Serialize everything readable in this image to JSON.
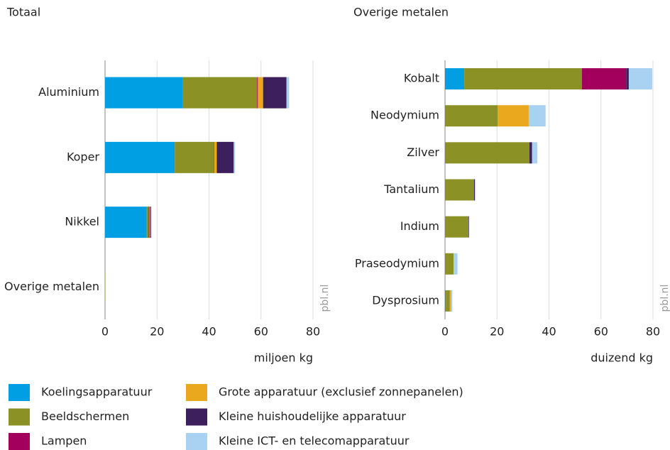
{
  "chart_data": [
    {
      "type": "bar",
      "orientation": "horizontal",
      "stacked": true,
      "title": "Totaal",
      "xlabel": "miljoen kg",
      "watermark": "pbl.nl",
      "categories": [
        "Aluminium",
        "Koper",
        "Nikkel",
        "Overige metalen"
      ],
      "xlim": [
        0,
        80
      ],
      "xticks": [
        0,
        20,
        40,
        60,
        80
      ],
      "grid": true,
      "series": [
        {
          "name": "Koelingsapparatuur",
          "color": "#009fe3",
          "values": [
            30,
            26.8,
            16,
            0
          ]
        },
        {
          "name": "Beeldschermen",
          "color": "#8b9125",
          "values": [
            28.5,
            15,
            0.8,
            0.1
          ]
        },
        {
          "name": "Lampen",
          "color": "#a3005e",
          "values": [
            0.3,
            0.2,
            0.3,
            0
          ]
        },
        {
          "name": "Grote apparatuur (exclusief zonnepanelen)",
          "color": "#e9a81d",
          "values": [
            2,
            1,
            0.3,
            0
          ]
        },
        {
          "name": "Kleine huishoudelijke apparatuur",
          "color": "#3c1f5c",
          "values": [
            9,
            6.5,
            0.3,
            0
          ]
        },
        {
          "name": "Kleine ICT- en telecomapparatuur",
          "color": "#a9d2f2",
          "values": [
            1,
            0.5,
            0,
            0
          ]
        }
      ]
    },
    {
      "type": "bar",
      "orientation": "horizontal",
      "stacked": true,
      "title": "Overige metalen",
      "xlabel": "duizend kg",
      "watermark": "pbl.nl",
      "categories": [
        "Kobalt",
        "Neodymium",
        "Zilver",
        "Tantalium",
        "Indium",
        "Praseodymium",
        "Dysprosium"
      ],
      "xlim": [
        0,
        80
      ],
      "xticks": [
        0,
        20,
        40,
        60,
        80
      ],
      "grid": true,
      "series": [
        {
          "name": "Koelingsapparatuur",
          "color": "#009fe3",
          "values": [
            7.4,
            0,
            0,
            0,
            0,
            0,
            0.3
          ]
        },
        {
          "name": "Beeldschermen",
          "color": "#8b9125",
          "values": [
            45.3,
            20.2,
            32.5,
            11.2,
            9,
            3.3,
            1.5
          ]
        },
        {
          "name": "Lampen",
          "color": "#a3005e",
          "values": [
            17,
            0,
            0,
            0,
            0,
            0,
            0
          ]
        },
        {
          "name": "Grote apparatuur (exclusief zonnepanelen)",
          "color": "#e9a81d",
          "values": [
            0,
            12,
            0,
            0,
            0,
            0,
            0.5
          ]
        },
        {
          "name": "Kleine huishoudelijke apparatuur",
          "color": "#3c1f5c",
          "values": [
            1,
            0,
            1,
            0.3,
            0.2,
            0,
            0
          ]
        },
        {
          "name": "Kleine ICT- en telecomapparatuur",
          "color": "#a9d2f2",
          "values": [
            9,
            6.5,
            2,
            0.2,
            0,
            1.5,
            0.5
          ]
        }
      ]
    }
  ]
}
